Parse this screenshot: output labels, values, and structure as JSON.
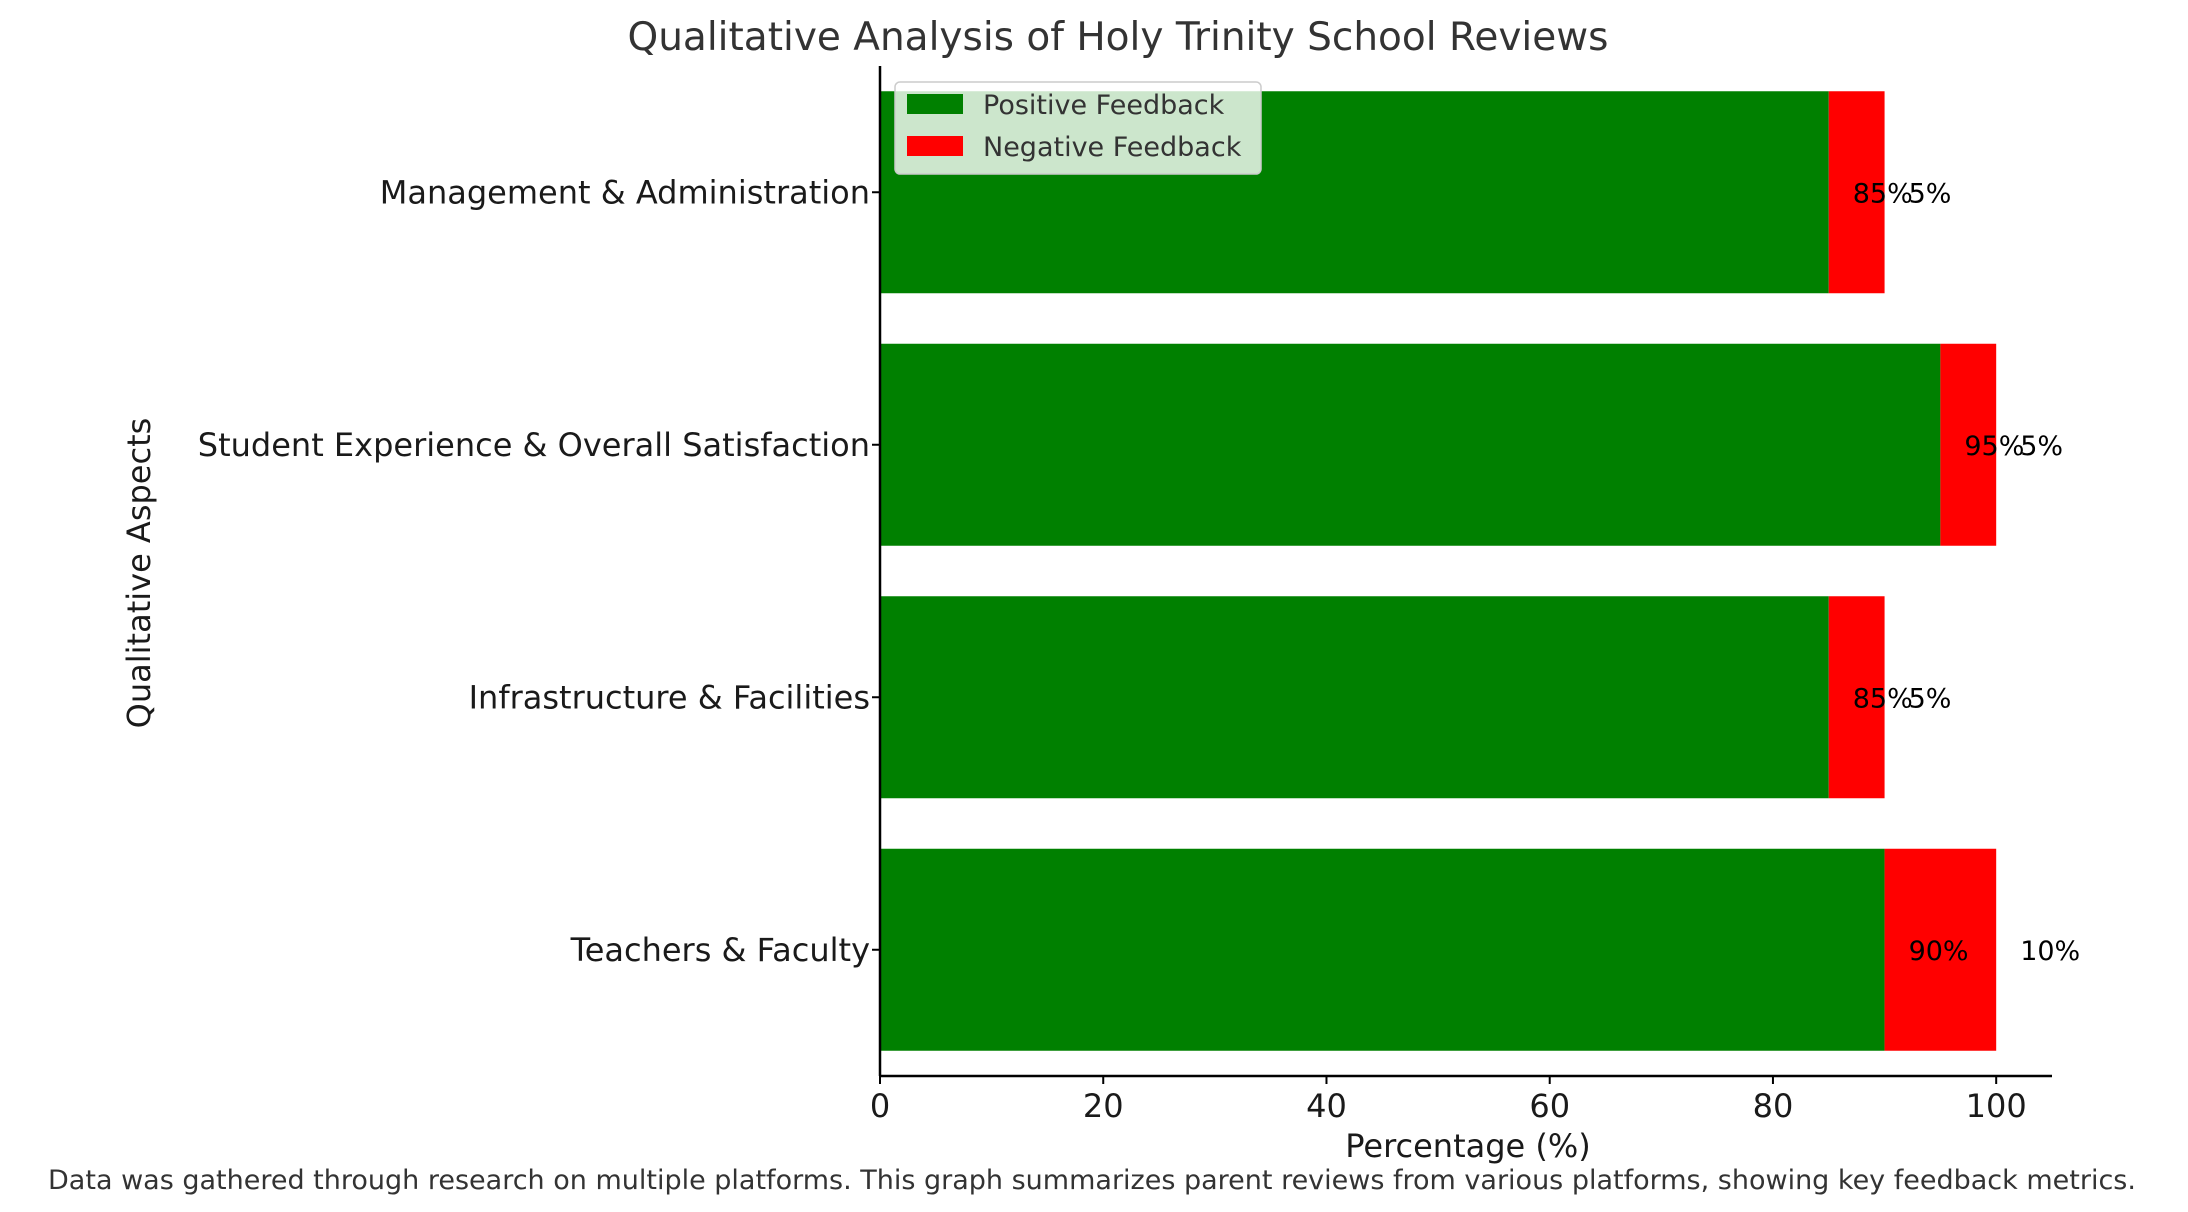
{
  "chart_data": {
    "type": "bar",
    "orientation": "horizontal",
    "stacked": true,
    "title": "Qualitative Analysis of Holy Trinity School Reviews",
    "xlabel": "Percentage (%)",
    "ylabel": "Qualitative Aspects",
    "xlim": [
      0,
      105
    ],
    "xticks": [
      0,
      20,
      40,
      60,
      80,
      100
    ],
    "grid": false,
    "legend_position": "top-left",
    "categories": [
      "Teachers & Faculty",
      "Infrastructure & Facilities",
      "Student Experience & Overall Satisfaction",
      "Management & Administration"
    ],
    "series": [
      {
        "name": "Positive Feedback",
        "color": "#008000",
        "values": [
          90,
          85,
          95,
          85
        ],
        "labels": [
          "90%",
          "85%",
          "95%",
          "85%"
        ]
      },
      {
        "name": "Negative Feedback",
        "color": "#ff0000",
        "values": [
          10,
          5,
          5,
          5
        ],
        "labels": [
          "10%",
          "5%",
          "5%",
          "5%"
        ]
      }
    ],
    "footnote": "Data was gathered through research on multiple platforms. This graph summarizes parent reviews from various platforms, showing key feedback metrics."
  }
}
